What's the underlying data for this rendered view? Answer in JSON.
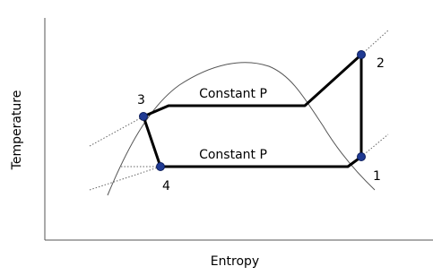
{
  "axes": {
    "x_label": "Entropy",
    "y_label": "Temperature"
  },
  "process_labels": [
    "Constant P",
    "Constant P"
  ],
  "points": [
    {
      "label": "1"
    },
    {
      "label": "2"
    },
    {
      "label": "3"
    },
    {
      "label": "4"
    }
  ]
}
